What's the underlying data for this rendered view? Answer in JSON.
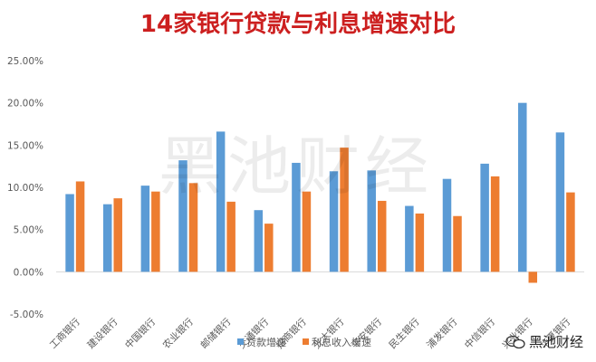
{
  "chart_data": {
    "type": "bar",
    "title": "14家银行贷款与利息增速对比",
    "categories": [
      "工商银行",
      "建设银行",
      "中国银行",
      "农业银行",
      "邮储银行",
      "交通银行",
      "招商银行",
      "光大银行",
      "平安银行",
      "民生银行",
      "浦发银行",
      "中信银行",
      "兴业银行",
      "华夏银行"
    ],
    "series": [
      {
        "name": "贷款增速",
        "color": "#5b9bd5",
        "values": [
          9.2,
          8.0,
          10.2,
          13.2,
          16.6,
          7.3,
          12.9,
          11.9,
          12.0,
          7.8,
          11.0,
          12.8,
          20.0,
          16.5
        ]
      },
      {
        "name": "利息收入增速",
        "color": "#ed7d31",
        "values": [
          10.7,
          8.7,
          9.5,
          10.5,
          8.3,
          5.7,
          9.5,
          14.7,
          8.4,
          6.9,
          6.6,
          11.3,
          -1.3,
          9.4
        ]
      }
    ],
    "ylim": [
      -5,
      25
    ],
    "yticks": [
      "-5.00%",
      "0.00%",
      "5.00%",
      "10.00%",
      "15.00%",
      "20.00%",
      "25.00%"
    ],
    "grid": false,
    "legend": "bottom"
  },
  "watermark": "黑池财经",
  "brand": {
    "icon": "wechat-icon",
    "text": "黑池财经"
  }
}
